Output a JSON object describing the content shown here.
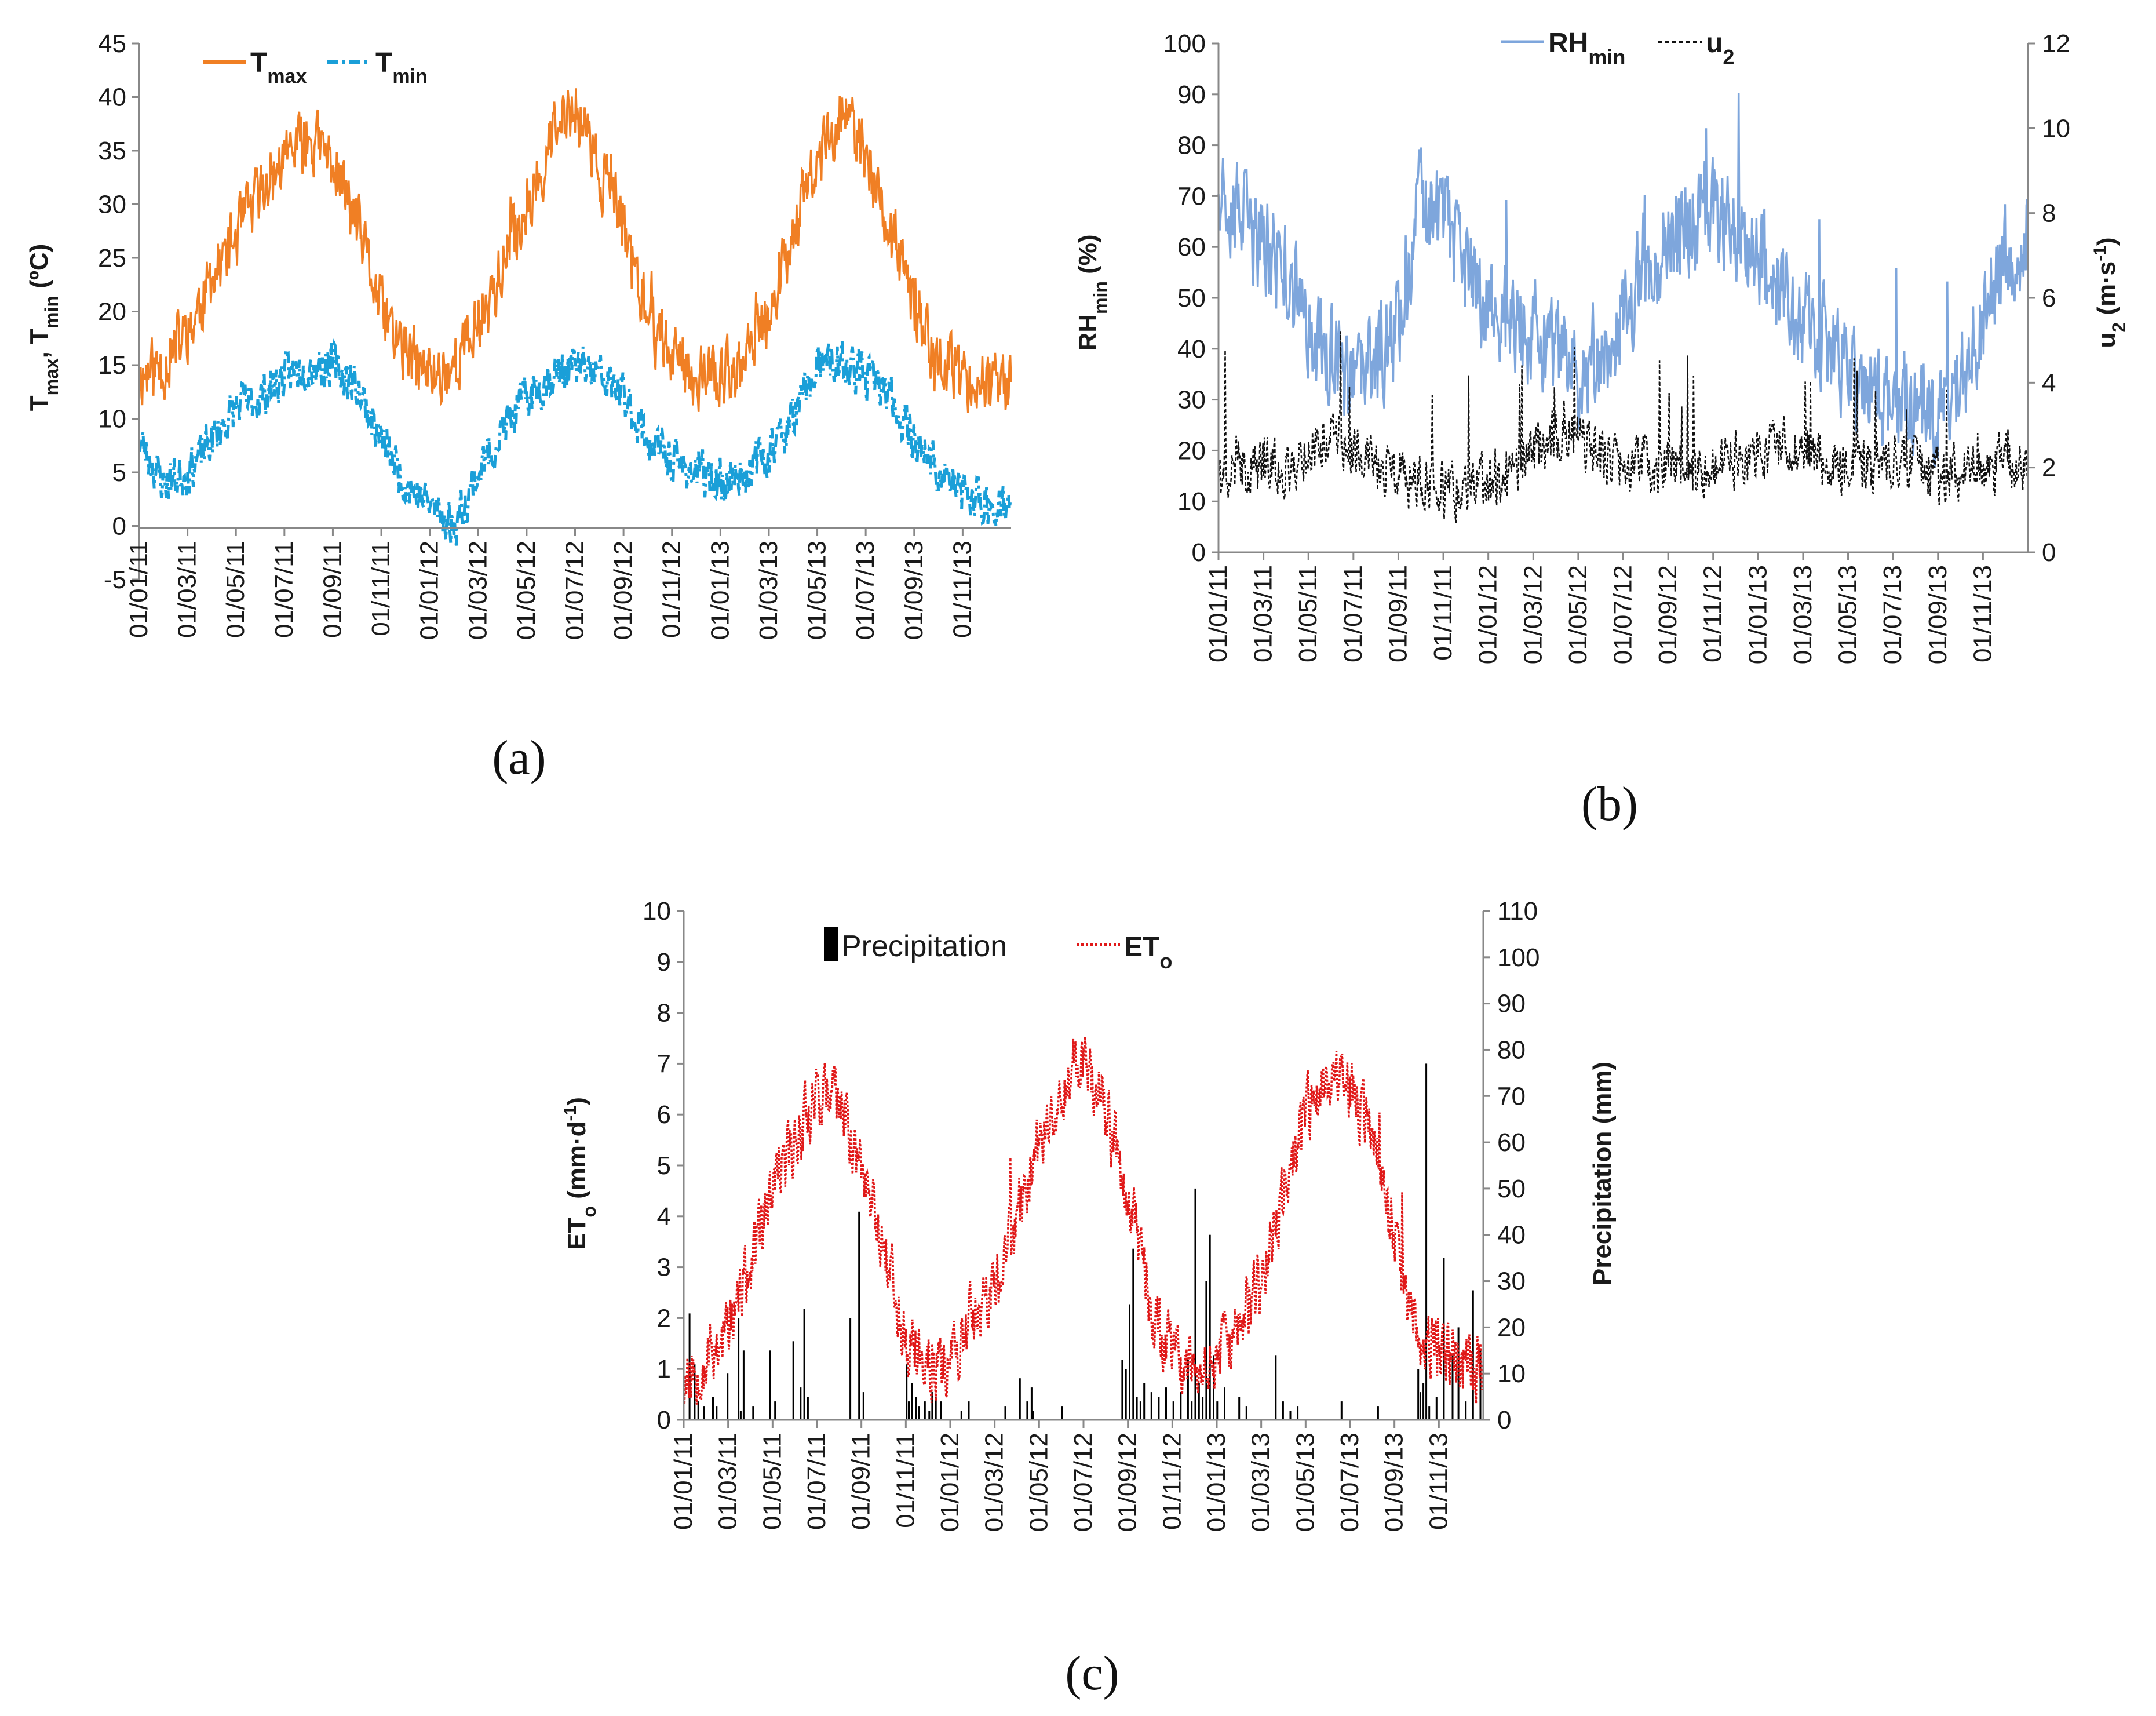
{
  "colors": {
    "tmax": "#F07F24",
    "tmin": "#1A9FD8",
    "rhmin": "#7EA6DC",
    "u2": "#111111",
    "eto": "#E01818",
    "precip": "#000000",
    "axis": "#888888"
  },
  "dates": [
    "01/01/11",
    "01/03/11",
    "01/05/11",
    "01/07/11",
    "01/09/11",
    "01/11/11",
    "01/01/12",
    "01/03/12",
    "01/05/12",
    "01/07/12",
    "01/09/12",
    "01/11/12",
    "01/01/13",
    "01/03/13",
    "01/05/13",
    "01/07/13",
    "01/09/13",
    "01/11/13"
  ],
  "chart_data": [
    {
      "panel": "(a)",
      "type": "line",
      "ylabel": {
        "main1": "T",
        "sub1": "max",
        "main2": ", T",
        "sub2": "min",
        "unit": " (ºC)"
      },
      "ylim": [
        -5,
        45
      ],
      "yticks": [
        "-5",
        "0",
        "5",
        "10",
        "15",
        "20",
        "25",
        "30",
        "35",
        "40",
        "45"
      ],
      "legend": [
        {
          "main": "T",
          "sub": "max"
        },
        {
          "main": "T",
          "sub": "min"
        }
      ],
      "series": [
        {
          "name": "Tmax",
          "style": "solid",
          "key_months": [
            0,
            1,
            2,
            3,
            4,
            5,
            6,
            7,
            8,
            9,
            10,
            11,
            12,
            13,
            14,
            15,
            16,
            17,
            18,
            19,
            20,
            21,
            22,
            23,
            24,
            25,
            26,
            27,
            28,
            29,
            30,
            31,
            32,
            33,
            34,
            35,
            36
          ],
          "key_values": [
            14,
            15,
            18,
            23,
            27,
            31,
            34,
            36,
            34,
            28,
            20,
            16,
            14,
            15,
            19,
            24,
            30,
            36,
            39,
            33,
            28,
            19,
            16,
            14,
            14,
            15,
            20,
            28,
            34,
            39,
            34,
            27,
            20,
            15,
            14,
            13,
            13
          ]
        },
        {
          "name": "Tmin",
          "style": "dashdot",
          "key_months": [
            0,
            1,
            2,
            3,
            4,
            5,
            6,
            7,
            8,
            9,
            10,
            11,
            12,
            13,
            14,
            15,
            16,
            17,
            18,
            19,
            20,
            21,
            22,
            23,
            24,
            25,
            26,
            27,
            28,
            29,
            30,
            31,
            32,
            33,
            34,
            35,
            36
          ],
          "key_values": [
            8,
            4,
            5,
            8,
            11,
            12,
            14,
            15,
            15,
            13,
            8,
            4,
            2,
            0,
            5,
            9,
            12,
            14,
            15,
            14,
            12,
            8,
            6,
            5,
            4,
            5,
            7,
            10,
            15,
            15,
            14,
            12,
            8,
            5,
            3,
            2,
            2
          ]
        }
      ]
    },
    {
      "panel": "(b)",
      "type": "line",
      "ylabel_left": {
        "main": "RH",
        "sub": "min",
        "unit": " (%)"
      },
      "ylabel_right": {
        "main": "u",
        "sub": "2",
        "unit": " (m·s",
        "sup": "-1",
        "end": ")"
      },
      "ylim_left": [
        0,
        100
      ],
      "ylim_right": [
        0,
        12
      ],
      "yticks_left": [
        "0",
        "10",
        "20",
        "30",
        "40",
        "50",
        "60",
        "70",
        "80",
        "90",
        "100"
      ],
      "yticks_right": [
        "0",
        "2",
        "4",
        "6",
        "8",
        "10",
        "12"
      ],
      "legend": [
        {
          "main": "RH",
          "sub": "min"
        },
        {
          "main": "u",
          "sub": "2"
        }
      ],
      "series": [
        {
          "name": "RHmin",
          "axis": "left",
          "key_months": [
            0,
            1,
            2,
            3,
            4,
            5,
            6,
            7,
            8,
            9,
            10,
            11,
            12,
            13,
            14,
            15,
            16,
            17,
            18,
            19,
            20,
            21,
            22,
            23,
            24,
            25,
            26,
            27,
            28,
            29,
            30,
            31,
            32,
            33,
            34,
            35,
            36
          ],
          "key_values": [
            75,
            65,
            60,
            55,
            45,
            38,
            32,
            38,
            45,
            70,
            65,
            55,
            48,
            45,
            42,
            38,
            35,
            40,
            45,
            55,
            62,
            65,
            68,
            64,
            58,
            52,
            46,
            40,
            35,
            32,
            30,
            30,
            28,
            34,
            46,
            58,
            62
          ]
        },
        {
          "name": "u2",
          "axis": "right",
          "key_months": [
            0,
            1,
            2,
            3,
            4,
            5,
            6,
            7,
            8,
            9,
            10,
            11,
            12,
            13,
            14,
            15,
            16,
            17,
            18,
            19,
            20,
            21,
            22,
            23,
            24,
            25,
            26,
            27,
            28,
            29,
            30,
            31,
            32,
            33,
            34,
            35,
            36
          ],
          "key_values": [
            1.8,
            2.0,
            2.1,
            1.9,
            2.4,
            2.8,
            2.5,
            2.0,
            1.8,
            1.6,
            1.5,
            1.4,
            1.6,
            2.0,
            2.3,
            2.8,
            2.6,
            2.3,
            2.0,
            2.1,
            2.0,
            1.9,
            2.0,
            2.2,
            2.3,
            2.6,
            2.4,
            2.2,
            2.0,
            2.0,
            2.1,
            2.0,
            1.8,
            1.9,
            2.0,
            2.2,
            2.1
          ]
        }
      ]
    },
    {
      "panel": "(c)",
      "type": "line+bar",
      "ylabel_left": {
        "main": "ET",
        "sub": "o",
        "unit": " (mm·d",
        "sup": "-1",
        "end": ")"
      },
      "ylabel_right": "Precipitation (mm)",
      "ylim_left": [
        0,
        10
      ],
      "ylim_right": [
        0,
        110
      ],
      "yticks_left": [
        "0",
        "1",
        "2",
        "3",
        "4",
        "5",
        "6",
        "7",
        "8",
        "9",
        "10"
      ],
      "yticks_right": [
        "0",
        "10",
        "20",
        "30",
        "40",
        "50",
        "60",
        "70",
        "80",
        "90",
        "100",
        "110"
      ],
      "legend": [
        {
          "main": "Precipitation",
          "sub": ""
        },
        {
          "main": "ET",
          "sub": "o"
        }
      ],
      "series": [
        {
          "name": "ETo",
          "axis": "left",
          "key_months": [
            0,
            1,
            2,
            3,
            4,
            5,
            6,
            7,
            8,
            9,
            10,
            11,
            12,
            13,
            14,
            15,
            16,
            17,
            18,
            19,
            20,
            21,
            22,
            23,
            24,
            25,
            26,
            27,
            28,
            29,
            30,
            31,
            32,
            33,
            34,
            35,
            36
          ],
          "key_values": [
            0.8,
            1.2,
            1.8,
            3.0,
            4.5,
            5.5,
            6.5,
            6.2,
            5.0,
            3.5,
            1.5,
            1.0,
            1.2,
            2.0,
            2.5,
            4.0,
            5.5,
            6.5,
            7.2,
            6.0,
            4.5,
            2.2,
            1.2,
            0.9,
            1.2,
            1.8,
            2.8,
            4.5,
            6.0,
            6.8,
            6.5,
            5.5,
            3.5,
            1.8,
            1.4,
            1.1,
            1.0
          ]
        },
        {
          "name": "Precipitation",
          "axis": "right",
          "type": "bar",
          "days": [
            8,
            15,
            20,
            28,
            40,
            45,
            60,
            75,
            78,
            82,
            95,
            118,
            125,
            150,
            160,
            165,
            170,
            228,
            240,
            246,
            305,
            308,
            312,
            318,
            322,
            330,
            336,
            340,
            345,
            352,
            380,
            390,
            440,
            460,
            470,
            476,
            478,
            518,
            600,
            605,
            610,
            615,
            620,
            625,
            630,
            640,
            650,
            660,
            670,
            680,
            690,
            695,
            700,
            705,
            710,
            715,
            720,
            725,
            730,
            740,
            760,
            770,
            810,
            820,
            830,
            840,
            900,
            950,
            1005,
            1008,
            1012,
            1016,
            1020,
            1030,
            1040,
            1052,
            1060,
            1070,
            1080,
            1090
          ],
          "values": [
            23,
            12,
            4,
            3,
            5,
            3,
            10,
            22,
            2,
            15,
            3,
            15,
            4,
            17,
            7,
            24,
            5,
            22,
            45,
            6,
            12,
            4,
            8,
            5,
            3,
            4,
            2,
            6,
            5,
            4,
            2,
            4,
            3,
            9,
            4,
            7,
            2,
            3,
            13,
            11,
            25,
            37,
            5,
            4,
            8,
            6,
            5,
            7,
            4,
            6,
            13,
            4,
            50,
            8,
            5,
            30,
            40,
            14,
            4,
            7,
            5,
            3,
            14,
            4,
            2,
            3,
            4,
            3,
            11,
            6,
            8,
            77,
            3,
            5,
            35,
            14,
            20,
            4,
            28,
            15
          ]
        }
      ]
    }
  ]
}
